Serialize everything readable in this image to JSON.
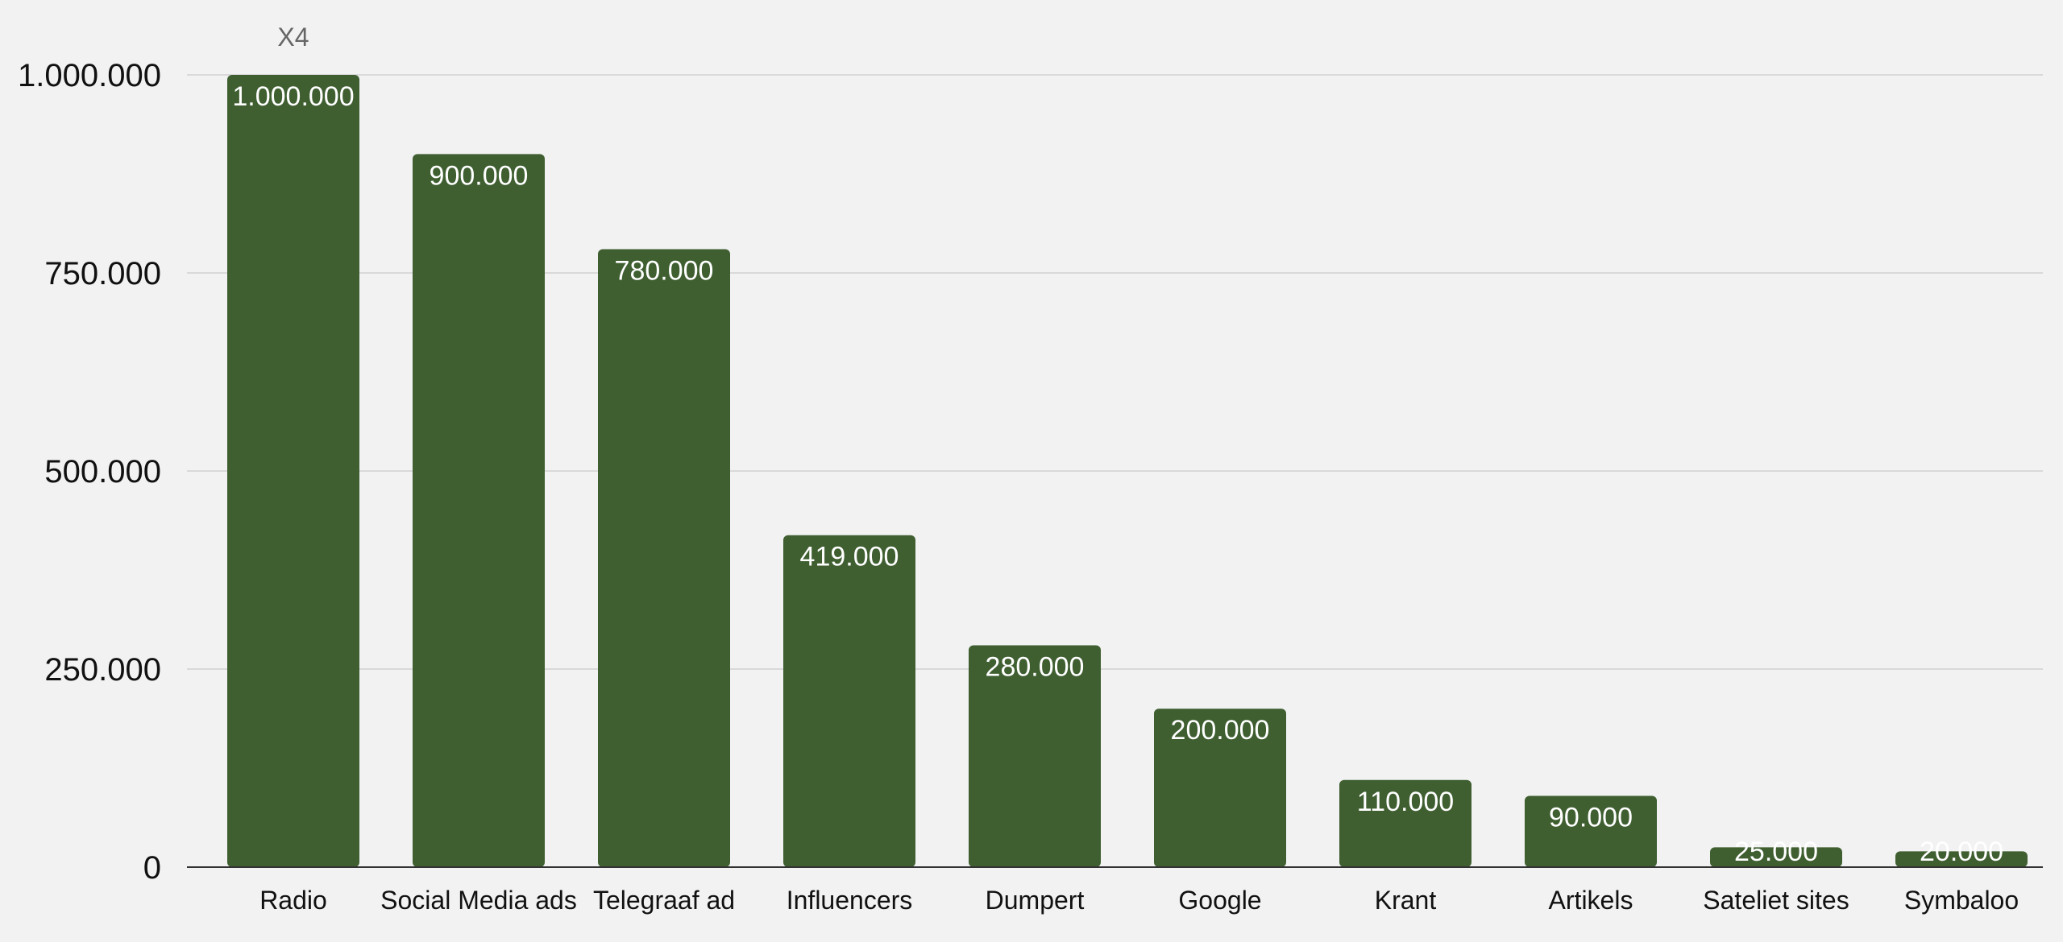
{
  "chart_data": {
    "type": "bar",
    "categories": [
      "Radio",
      "Social Media ads",
      "Telegraaf ad",
      "Influencers",
      "Dumpert",
      "Google",
      "Krant",
      "Artikels",
      "Sateliet sites",
      "Symbaloo"
    ],
    "values": [
      1000000,
      900000,
      780000,
      419000,
      280000,
      200000,
      110000,
      90000,
      25000,
      20000
    ],
    "value_labels": [
      "1.000.000",
      "900.000",
      "780.000",
      "419.000",
      "280.000",
      "200.000",
      "110.000",
      "90.000",
      "25.000",
      "20.000"
    ],
    "title": "",
    "xlabel": "",
    "ylabel": "",
    "ylim": [
      0,
      1000000
    ],
    "yticks": [
      0,
      250000,
      500000,
      750000,
      1000000
    ],
    "ytick_labels": [
      "0",
      "250.000",
      "500.000",
      "750.000",
      "1.000.000"
    ],
    "grid": true,
    "legend": "none",
    "bar_color": "#3f5f31",
    "annotations": [
      {
        "text": "X4",
        "category": "Radio",
        "position": "above"
      }
    ]
  }
}
